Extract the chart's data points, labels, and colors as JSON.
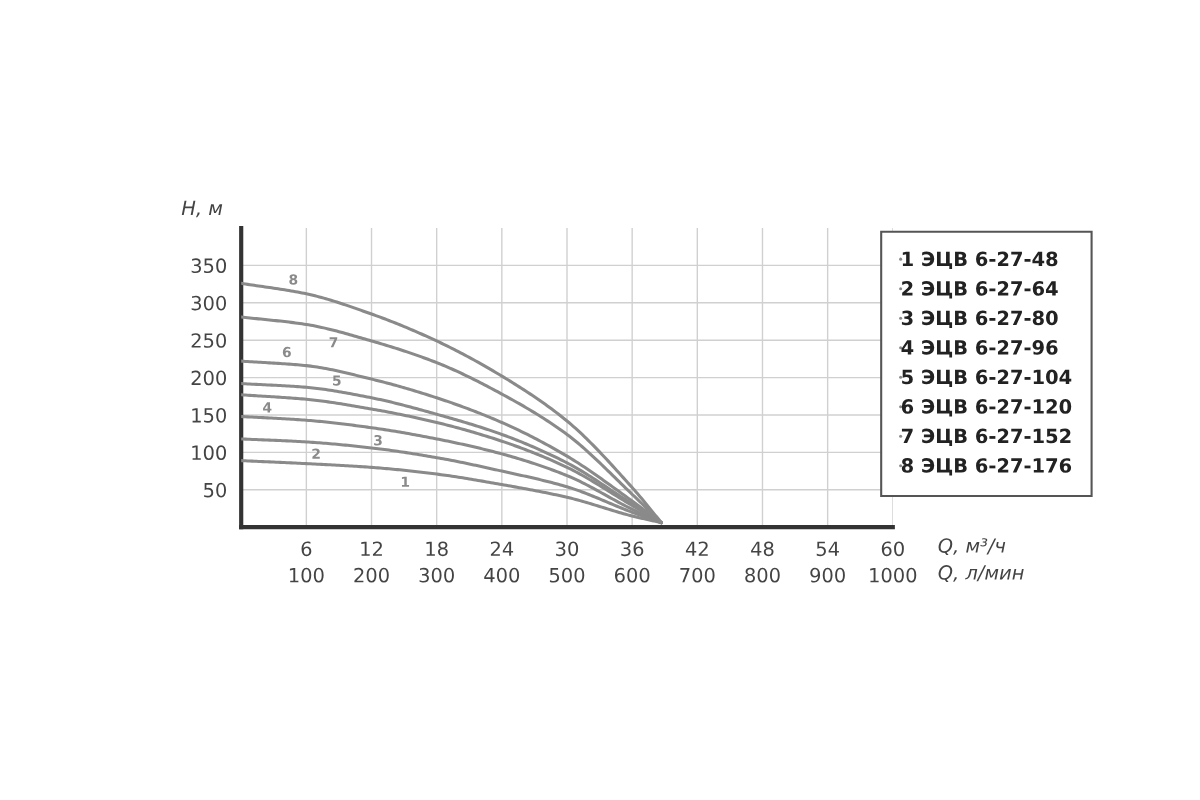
{
  "chart_data": {
    "type": "line",
    "xlabel": "Q, м³/ч",
    "ylabel": "H, м",
    "x2label": "Q, л/мин",
    "x": [
      0,
      6,
      12,
      18,
      24,
      30,
      36,
      38.7
    ],
    "series": [
      {
        "name": "1 ЭЦВ 6-27-48",
        "color": "#8a8a8a",
        "values": [
          89,
          85,
          80,
          71,
          57,
          40,
          15,
          6
        ]
      },
      {
        "name": "2 ЭЦВ 6-27-64",
        "color": "#8a8a8a",
        "values": [
          118,
          114,
          106,
          93,
          75,
          54,
          20,
          6
        ]
      },
      {
        "name": "3 ЭЦВ 6-27-80",
        "color": "#8a8a8a",
        "values": [
          148,
          143,
          133,
          118,
          98,
          69,
          24,
          6
        ]
      },
      {
        "name": "4 ЭЦВ 6-27-96",
        "color": "#8a8a8a",
        "values": [
          177,
          171,
          158,
          140,
          115,
          80,
          29,
          6
        ]
      },
      {
        "name": "5 ЭЦВ 6-27-104",
        "color": "#8a8a8a",
        "values": [
          192,
          187,
          173,
          151,
          124,
          86,
          31,
          6
        ]
      },
      {
        "name": "6 ЭЦВ 6-27-120",
        "color": "#8a8a8a",
        "values": [
          222,
          216,
          198,
          173,
          140,
          95,
          35,
          6
        ]
      },
      {
        "name": "7 ЭЦВ 6-27-152",
        "color": "#8a8a8a",
        "values": [
          281,
          271,
          249,
          220,
          178,
          124,
          44,
          6
        ]
      },
      {
        "name": "8 ЭЦВ 6-27-176",
        "color": "#8a8a8a",
        "values": [
          326,
          312,
          285,
          249,
          202,
          142,
          53,
          6
        ]
      }
    ],
    "annotations": [
      {
        "text": "1",
        "x": 15.1,
        "y": 75.5
      },
      {
        "text": "2",
        "x": 6.9,
        "y": 113
      },
      {
        "text": "3",
        "x": 12.6,
        "y": 131
      },
      {
        "text": "4",
        "x": 2.4,
        "y": 175
      },
      {
        "text": "5",
        "x": 8.8,
        "y": 180
      },
      {
        "text": "6",
        "x": 4.2,
        "y": 218
      },
      {
        "text": "7",
        "x": 8.5,
        "y": 262
      },
      {
        "text": "8",
        "x": 4.8,
        "y": 315
      }
    ],
    "xlim": [
      0,
      60
    ],
    "xticks": [
      6,
      12,
      18,
      24,
      30,
      36,
      42,
      48,
      54,
      60
    ],
    "x2lim": [
      0,
      1000
    ],
    "x2ticks": [
      100,
      200,
      300,
      400,
      500,
      600,
      700,
      800,
      900,
      1000
    ],
    "ylim": [
      0,
      400
    ],
    "yticks": [
      50,
      100,
      150,
      200,
      250,
      300,
      350
    ],
    "grid": true,
    "legend": "top right",
    "line_style": "solid"
  }
}
